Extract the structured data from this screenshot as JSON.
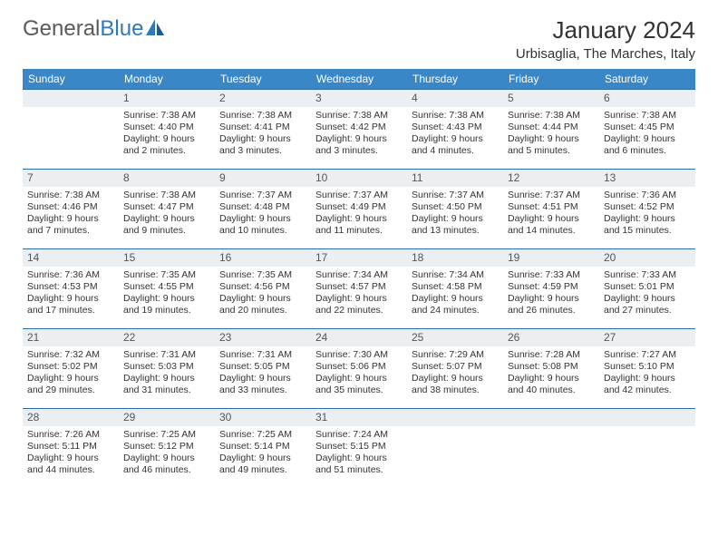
{
  "logo": {
    "text1": "General",
    "text2": "Blue"
  },
  "title": "January 2024",
  "location": "Urbisaglia, The Marches, Italy",
  "colors": {
    "header_bg": "#3a87c8",
    "daynum_bg": "#eceff1",
    "border": "#2f6fa8",
    "text": "#333333",
    "logo_gray": "#5a5a5a",
    "logo_blue": "#2f79bd"
  },
  "daynames": [
    "Sunday",
    "Monday",
    "Tuesday",
    "Wednesday",
    "Thursday",
    "Friday",
    "Saturday"
  ],
  "weeks": [
    [
      {
        "num": "",
        "sunrise": "",
        "sunset": "",
        "daylight1": "",
        "daylight2": ""
      },
      {
        "num": "1",
        "sunrise": "Sunrise: 7:38 AM",
        "sunset": "Sunset: 4:40 PM",
        "daylight1": "Daylight: 9 hours",
        "daylight2": "and 2 minutes."
      },
      {
        "num": "2",
        "sunrise": "Sunrise: 7:38 AM",
        "sunset": "Sunset: 4:41 PM",
        "daylight1": "Daylight: 9 hours",
        "daylight2": "and 3 minutes."
      },
      {
        "num": "3",
        "sunrise": "Sunrise: 7:38 AM",
        "sunset": "Sunset: 4:42 PM",
        "daylight1": "Daylight: 9 hours",
        "daylight2": "and 3 minutes."
      },
      {
        "num": "4",
        "sunrise": "Sunrise: 7:38 AM",
        "sunset": "Sunset: 4:43 PM",
        "daylight1": "Daylight: 9 hours",
        "daylight2": "and 4 minutes."
      },
      {
        "num": "5",
        "sunrise": "Sunrise: 7:38 AM",
        "sunset": "Sunset: 4:44 PM",
        "daylight1": "Daylight: 9 hours",
        "daylight2": "and 5 minutes."
      },
      {
        "num": "6",
        "sunrise": "Sunrise: 7:38 AM",
        "sunset": "Sunset: 4:45 PM",
        "daylight1": "Daylight: 9 hours",
        "daylight2": "and 6 minutes."
      }
    ],
    [
      {
        "num": "7",
        "sunrise": "Sunrise: 7:38 AM",
        "sunset": "Sunset: 4:46 PM",
        "daylight1": "Daylight: 9 hours",
        "daylight2": "and 7 minutes."
      },
      {
        "num": "8",
        "sunrise": "Sunrise: 7:38 AM",
        "sunset": "Sunset: 4:47 PM",
        "daylight1": "Daylight: 9 hours",
        "daylight2": "and 9 minutes."
      },
      {
        "num": "9",
        "sunrise": "Sunrise: 7:37 AM",
        "sunset": "Sunset: 4:48 PM",
        "daylight1": "Daylight: 9 hours",
        "daylight2": "and 10 minutes."
      },
      {
        "num": "10",
        "sunrise": "Sunrise: 7:37 AM",
        "sunset": "Sunset: 4:49 PM",
        "daylight1": "Daylight: 9 hours",
        "daylight2": "and 11 minutes."
      },
      {
        "num": "11",
        "sunrise": "Sunrise: 7:37 AM",
        "sunset": "Sunset: 4:50 PM",
        "daylight1": "Daylight: 9 hours",
        "daylight2": "and 13 minutes."
      },
      {
        "num": "12",
        "sunrise": "Sunrise: 7:37 AM",
        "sunset": "Sunset: 4:51 PM",
        "daylight1": "Daylight: 9 hours",
        "daylight2": "and 14 minutes."
      },
      {
        "num": "13",
        "sunrise": "Sunrise: 7:36 AM",
        "sunset": "Sunset: 4:52 PM",
        "daylight1": "Daylight: 9 hours",
        "daylight2": "and 15 minutes."
      }
    ],
    [
      {
        "num": "14",
        "sunrise": "Sunrise: 7:36 AM",
        "sunset": "Sunset: 4:53 PM",
        "daylight1": "Daylight: 9 hours",
        "daylight2": "and 17 minutes."
      },
      {
        "num": "15",
        "sunrise": "Sunrise: 7:35 AM",
        "sunset": "Sunset: 4:55 PM",
        "daylight1": "Daylight: 9 hours",
        "daylight2": "and 19 minutes."
      },
      {
        "num": "16",
        "sunrise": "Sunrise: 7:35 AM",
        "sunset": "Sunset: 4:56 PM",
        "daylight1": "Daylight: 9 hours",
        "daylight2": "and 20 minutes."
      },
      {
        "num": "17",
        "sunrise": "Sunrise: 7:34 AM",
        "sunset": "Sunset: 4:57 PM",
        "daylight1": "Daylight: 9 hours",
        "daylight2": "and 22 minutes."
      },
      {
        "num": "18",
        "sunrise": "Sunrise: 7:34 AM",
        "sunset": "Sunset: 4:58 PM",
        "daylight1": "Daylight: 9 hours",
        "daylight2": "and 24 minutes."
      },
      {
        "num": "19",
        "sunrise": "Sunrise: 7:33 AM",
        "sunset": "Sunset: 4:59 PM",
        "daylight1": "Daylight: 9 hours",
        "daylight2": "and 26 minutes."
      },
      {
        "num": "20",
        "sunrise": "Sunrise: 7:33 AM",
        "sunset": "Sunset: 5:01 PM",
        "daylight1": "Daylight: 9 hours",
        "daylight2": "and 27 minutes."
      }
    ],
    [
      {
        "num": "21",
        "sunrise": "Sunrise: 7:32 AM",
        "sunset": "Sunset: 5:02 PM",
        "daylight1": "Daylight: 9 hours",
        "daylight2": "and 29 minutes."
      },
      {
        "num": "22",
        "sunrise": "Sunrise: 7:31 AM",
        "sunset": "Sunset: 5:03 PM",
        "daylight1": "Daylight: 9 hours",
        "daylight2": "and 31 minutes."
      },
      {
        "num": "23",
        "sunrise": "Sunrise: 7:31 AM",
        "sunset": "Sunset: 5:05 PM",
        "daylight1": "Daylight: 9 hours",
        "daylight2": "and 33 minutes."
      },
      {
        "num": "24",
        "sunrise": "Sunrise: 7:30 AM",
        "sunset": "Sunset: 5:06 PM",
        "daylight1": "Daylight: 9 hours",
        "daylight2": "and 35 minutes."
      },
      {
        "num": "25",
        "sunrise": "Sunrise: 7:29 AM",
        "sunset": "Sunset: 5:07 PM",
        "daylight1": "Daylight: 9 hours",
        "daylight2": "and 38 minutes."
      },
      {
        "num": "26",
        "sunrise": "Sunrise: 7:28 AM",
        "sunset": "Sunset: 5:08 PM",
        "daylight1": "Daylight: 9 hours",
        "daylight2": "and 40 minutes."
      },
      {
        "num": "27",
        "sunrise": "Sunrise: 7:27 AM",
        "sunset": "Sunset: 5:10 PM",
        "daylight1": "Daylight: 9 hours",
        "daylight2": "and 42 minutes."
      }
    ],
    [
      {
        "num": "28",
        "sunrise": "Sunrise: 7:26 AM",
        "sunset": "Sunset: 5:11 PM",
        "daylight1": "Daylight: 9 hours",
        "daylight2": "and 44 minutes."
      },
      {
        "num": "29",
        "sunrise": "Sunrise: 7:25 AM",
        "sunset": "Sunset: 5:12 PM",
        "daylight1": "Daylight: 9 hours",
        "daylight2": "and 46 minutes."
      },
      {
        "num": "30",
        "sunrise": "Sunrise: 7:25 AM",
        "sunset": "Sunset: 5:14 PM",
        "daylight1": "Daylight: 9 hours",
        "daylight2": "and 49 minutes."
      },
      {
        "num": "31",
        "sunrise": "Sunrise: 7:24 AM",
        "sunset": "Sunset: 5:15 PM",
        "daylight1": "Daylight: 9 hours",
        "daylight2": "and 51 minutes."
      },
      {
        "num": "",
        "sunrise": "",
        "sunset": "",
        "daylight1": "",
        "daylight2": ""
      },
      {
        "num": "",
        "sunrise": "",
        "sunset": "",
        "daylight1": "",
        "daylight2": ""
      },
      {
        "num": "",
        "sunrise": "",
        "sunset": "",
        "daylight1": "",
        "daylight2": ""
      }
    ]
  ]
}
